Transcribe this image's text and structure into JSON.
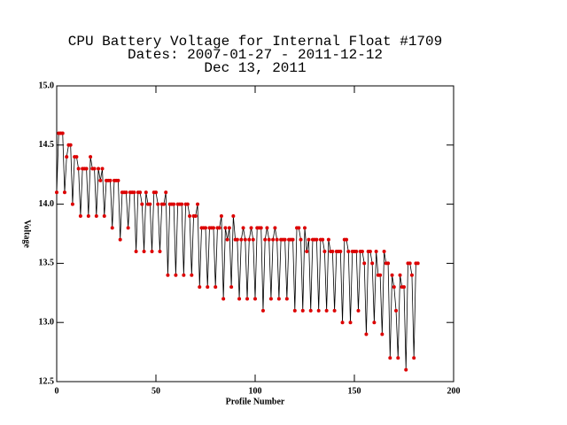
{
  "chart_data": {
    "type": "line",
    "title": [
      "CPU Battery Voltage for Internal Float #1709",
      "Dates:  2007-01-27 -  2011-12-12",
      "Dec 13, 2011"
    ],
    "xlabel": "Profile Number",
    "ylabel": "Voltage",
    "series": [
      {
        "color": "#000000",
        "marker_color": "#dd0000",
        "values": [
          14.1,
          14.6,
          14.6,
          14.6,
          14.1,
          14.4,
          14.5,
          14.5,
          14.0,
          14.4,
          14.4,
          14.3,
          13.9,
          14.3,
          14.3,
          14.3,
          13.9,
          14.4,
          14.3,
          14.3,
          13.9,
          14.3,
          14.2,
          14.3,
          13.9,
          14.2,
          14.2,
          14.2,
          13.8,
          14.2,
          14.2,
          14.2,
          13.7,
          14.1,
          14.1,
          14.1,
          13.8,
          14.1,
          14.1,
          14.1,
          13.6,
          14.1,
          14.1,
          14.0,
          13.6,
          14.1,
          14.0,
          14.0,
          13.6,
          14.1,
          14.1,
          14.0,
          13.6,
          14.0,
          14.0,
          14.1,
          13.4,
          14.0,
          14.0,
          14.0,
          13.4,
          14.0,
          14.0,
          14.0,
          13.4,
          14.0,
          14.0,
          13.9,
          13.4,
          13.9,
          13.9,
          14.0,
          13.3,
          13.8,
          13.8,
          13.8,
          13.3,
          13.8,
          13.8,
          13.8,
          13.3,
          13.8,
          13.8,
          13.9,
          13.2,
          13.8,
          13.7,
          13.8,
          13.3,
          13.9,
          13.7,
          13.7,
          13.2,
          13.7,
          13.8,
          13.7,
          13.2,
          13.7,
          13.8,
          13.7,
          13.2,
          13.8,
          13.8,
          13.8,
          13.1,
          13.7,
          13.8,
          13.7,
          13.2,
          13.7,
          13.8,
          13.7,
          13.2,
          13.7,
          13.7,
          13.7,
          13.2,
          13.7,
          13.7,
          13.7,
          13.1,
          13.8,
          13.8,
          13.7,
          13.1,
          13.8,
          13.6,
          13.7,
          13.1,
          13.7,
          13.7,
          13.7,
          13.1,
          13.7,
          13.7,
          13.6,
          13.1,
          13.7,
          13.6,
          13.6,
          13.1,
          13.6,
          13.6,
          13.6,
          13.0,
          13.7,
          13.7,
          13.6,
          13.0,
          13.6,
          13.6,
          13.6,
          13.1,
          13.6,
          13.6,
          13.5,
          12.9,
          13.6,
          13.6,
          13.5,
          13.0,
          13.6,
          13.4,
          13.4,
          12.9,
          13.6,
          13.5,
          13.5,
          12.7,
          13.4,
          13.3,
          13.1,
          12.7,
          13.4,
          13.3,
          13.3,
          12.6,
          13.5,
          13.5,
          13.4,
          12.7,
          13.5,
          13.5
        ]
      }
    ],
    "xlim": [
      0,
      200
    ],
    "xticks": [
      0,
      50,
      100,
      150,
      200
    ],
    "ylim": [
      12.5,
      15.0
    ],
    "yticks": [
      {
        "value": 12.5,
        "label": "12.5"
      },
      {
        "value": 13,
        "label": "13.0"
      },
      {
        "value": 13.5,
        "label": "13.5"
      },
      {
        "value": 14,
        "label": "14.0"
      },
      {
        "value": 14.5,
        "label": "14.5"
      },
      {
        "value": 15,
        "label": "15.0"
      }
    ]
  }
}
